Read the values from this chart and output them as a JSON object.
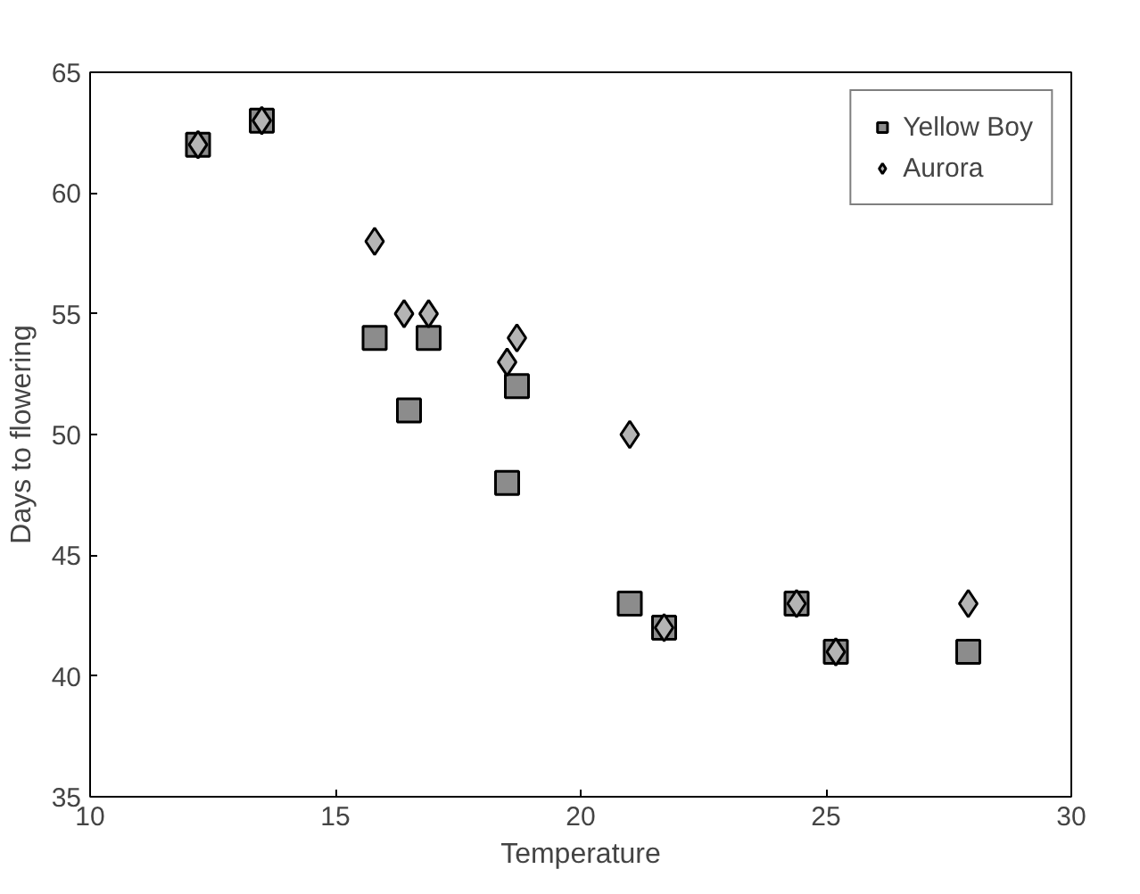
{
  "chart_data": {
    "type": "scatter",
    "xlabel": "Temperature",
    "ylabel": "Days to flowering",
    "xlim": [
      10,
      30
    ],
    "xticks": [
      10,
      15,
      20,
      25,
      30
    ],
    "ylim": [
      35,
      65
    ],
    "yticks": [
      35,
      40,
      45,
      50,
      55,
      60,
      65
    ],
    "grid": false,
    "legend": "top right",
    "series": [
      {
        "name": "Yellow Boy",
        "color": "#8c8c8c",
        "marker": "square",
        "x": [
          12.2,
          13.5,
          15.8,
          16.5,
          16.9,
          18.5,
          18.7,
          21.0,
          21.7,
          24.4,
          25.2,
          27.9
        ],
        "values": [
          62,
          63,
          54,
          51,
          54,
          48,
          52,
          43,
          42,
          43,
          41,
          41
        ]
      },
      {
        "name": "Aurora",
        "color": "#b4b4b4",
        "marker": "diamond",
        "x": [
          12.2,
          13.5,
          15.8,
          16.4,
          16.9,
          18.5,
          18.7,
          21.0,
          21.7,
          24.4,
          25.2,
          27.9
        ],
        "values": [
          62,
          63,
          58,
          55,
          55,
          53,
          54,
          50,
          42,
          43,
          41,
          43
        ]
      }
    ]
  }
}
